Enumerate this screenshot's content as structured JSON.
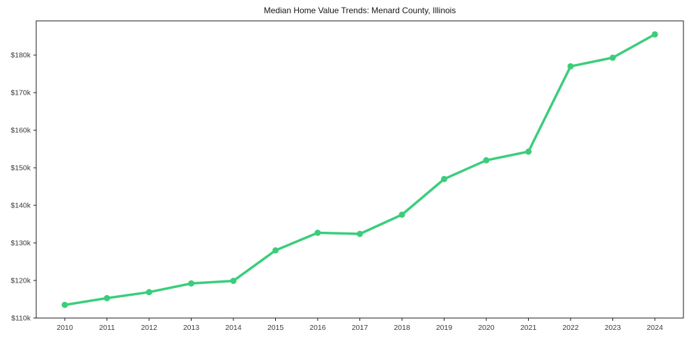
{
  "chart_data": {
    "type": "line",
    "title": "Median Home Value Trends: Menard County, Illinois",
    "xlabel": "",
    "ylabel": "",
    "x": [
      2010,
      2011,
      2012,
      2013,
      2014,
      2015,
      2016,
      2017,
      2018,
      2019,
      2020,
      2021,
      2022,
      2023,
      2024
    ],
    "series": [
      {
        "name": "Median Home Value (USD thousands)",
        "values": [
          113.5,
          115.3,
          116.9,
          119.2,
          119.9,
          128.0,
          132.7,
          132.4,
          137.5,
          147.0,
          152.0,
          154.3,
          177.0,
          179.3,
          185.5
        ]
      }
    ],
    "ytick_values": [
      110,
      120,
      130,
      140,
      150,
      160,
      170,
      180
    ],
    "ytick_labels": [
      "$110k",
      "$120k",
      "$130k",
      "$140k",
      "$150k",
      "$160k",
      "$170k",
      "$180k"
    ],
    "xtick_labels": [
      "2010",
      "2011",
      "2012",
      "2013",
      "2014",
      "2015",
      "2016",
      "2017",
      "2018",
      "2019",
      "2020",
      "2021",
      "2022",
      "2023",
      "2024"
    ],
    "ylim": [
      110,
      189.1
    ],
    "grid": false,
    "legend_position": "none",
    "line_color": "#3bcd7c",
    "marker": "circle",
    "frame_color": "#1a1a1a",
    "tick_text_color": "#3a3a3a"
  }
}
